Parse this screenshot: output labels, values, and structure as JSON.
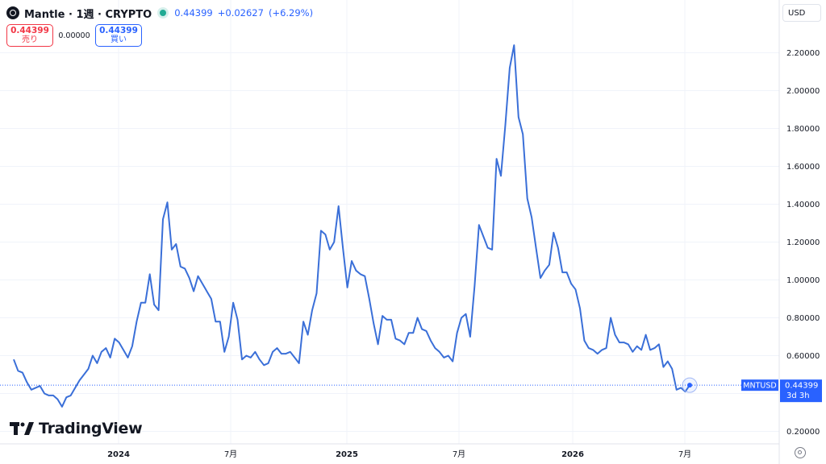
{
  "header": {
    "symbol_title": "Mantle · 1週 · CRYPTO",
    "last_price": "0.44399",
    "change": "+0.02627",
    "change_pct": "(+6.29%)"
  },
  "trade": {
    "sell_price": "0.44399",
    "sell_label": "売り",
    "spread": "0.00000",
    "buy_price": "0.44399",
    "buy_label": "買い"
  },
  "currency": "USD",
  "price_label": {
    "symbol": "MNTUSD",
    "price": "0.44399",
    "countdown": "3d 3h"
  },
  "branding": "TradingView",
  "colors": {
    "line": "#3a6fd8",
    "accent": "#2962ff",
    "sell": "#f23645",
    "status": "#22ab94"
  },
  "icons": [
    "mantle-logo-icon",
    "status-dot-icon",
    "tradingview-logo-icon",
    "settings-icon"
  ],
  "chart_data": {
    "type": "line",
    "series": [
      {
        "values": [
          0.58,
          0.52,
          0.51,
          0.46,
          0.42,
          0.43,
          0.44,
          0.4,
          0.39,
          0.39,
          0.37,
          0.33,
          0.38,
          0.39,
          0.43,
          0.47,
          0.5,
          0.53,
          0.6,
          0.56,
          0.62,
          0.64,
          0.59,
          0.69,
          0.67,
          0.63,
          0.59,
          0.65,
          0.78,
          0.88,
          0.88,
          1.03,
          0.87,
          0.84,
          1.32,
          1.41,
          1.16,
          1.19,
          1.07,
          1.06,
          1.01,
          0.94,
          1.02,
          0.98,
          0.94,
          0.9,
          0.78,
          0.78,
          0.62,
          0.7,
          0.88,
          0.79,
          0.58,
          0.6,
          0.59,
          0.62,
          0.58,
          0.55,
          0.56,
          0.62,
          0.64,
          0.61,
          0.61,
          0.62,
          0.59,
          0.56,
          0.78,
          0.71,
          0.84,
          0.93,
          1.26,
          1.24,
          1.16,
          1.2,
          1.39,
          1.17,
          0.96,
          1.1,
          1.05,
          1.03,
          1.02,
          0.9,
          0.77,
          0.66,
          0.81,
          0.79,
          0.79,
          0.69,
          0.68,
          0.66,
          0.72,
          0.72,
          0.8,
          0.74,
          0.73,
          0.68,
          0.64,
          0.62,
          0.59,
          0.6,
          0.57,
          0.72,
          0.8,
          0.82,
          0.7,
          0.97,
          1.29,
          1.23,
          1.17,
          1.16,
          1.64,
          1.55,
          1.82,
          2.12,
          2.24,
          1.86,
          1.77,
          1.43,
          1.33,
          1.17,
          1.01,
          1.05,
          1.08,
          1.25,
          1.17,
          1.04,
          1.04,
          0.98,
          0.95,
          0.85,
          0.68,
          0.64,
          0.63,
          0.61,
          0.63,
          0.64,
          0.8,
          0.71,
          0.67,
          0.67,
          0.66,
          0.62,
          0.65,
          0.63,
          0.71,
          0.63,
          0.64,
          0.66,
          0.54,
          0.57,
          0.53,
          0.42,
          0.43,
          0.41,
          0.44399
        ]
      }
    ],
    "y_ticks": [
      "0.20000",
      "0.40000",
      "0.60000",
      "0.80000",
      "1.00000",
      "1.20000",
      "1.40000",
      "1.60000",
      "1.80000",
      "2.00000",
      "2.20000"
    ],
    "x_ticks": [
      "2024",
      "7月",
      "2025",
      "7月",
      "2026",
      "7月"
    ],
    "ylim": [
      0.2,
      2.2
    ],
    "last_value": 0.44399,
    "grid": true
  }
}
